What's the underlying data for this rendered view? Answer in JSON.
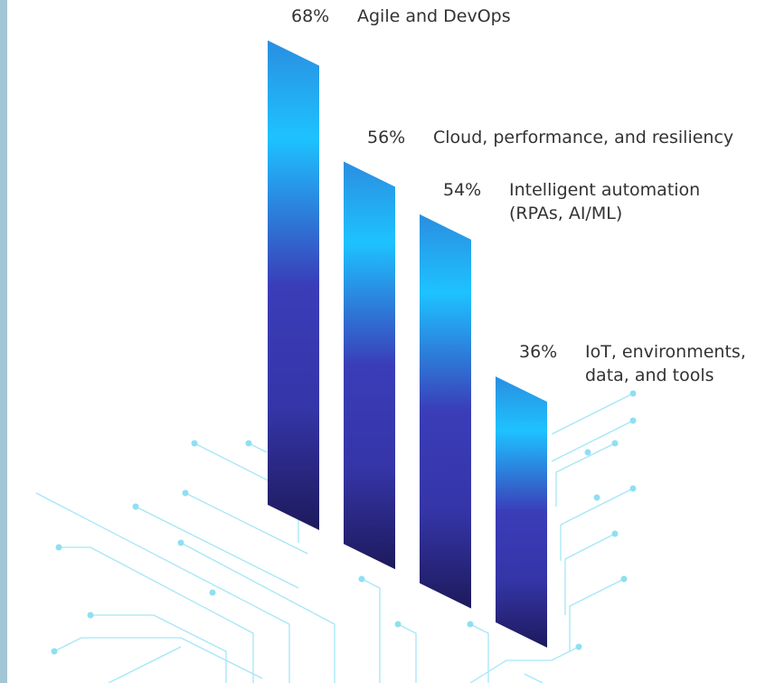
{
  "chart_data": {
    "type": "bar",
    "categories": [
      "Agile and DevOps",
      "Cloud, performance, and resiliency",
      "Intelligent automation (RPAs, AI/ML)",
      "IoT, environments, data, and tools"
    ],
    "values": [
      68,
      56,
      54,
      36
    ],
    "value_labels": [
      "68%",
      "56%",
      "54%",
      "36%"
    ]
  }
}
